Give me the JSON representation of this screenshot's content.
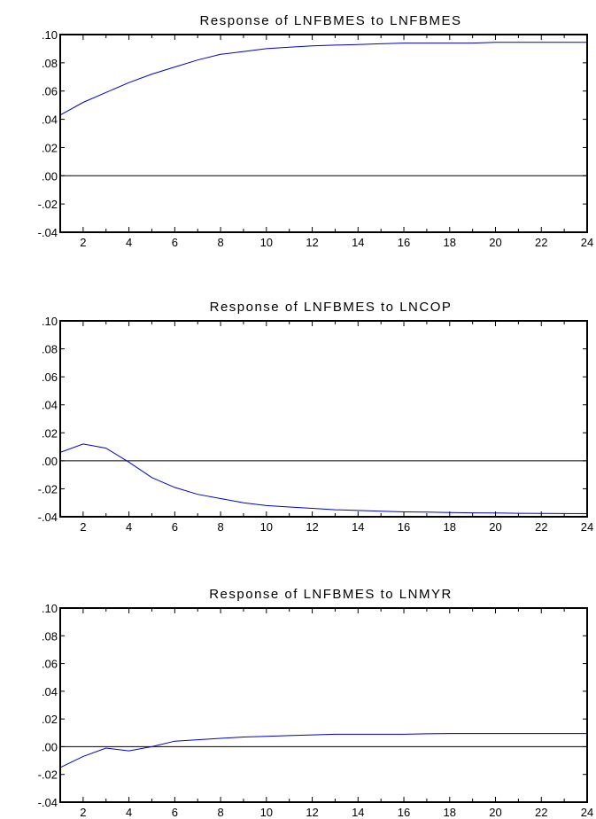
{
  "chart_data": [
    {
      "type": "line",
      "title": "Response of LNFBMES to LNFBMES",
      "x": [
        1,
        2,
        3,
        4,
        5,
        6,
        7,
        8,
        9,
        10,
        11,
        12,
        13,
        14,
        15,
        16,
        17,
        18,
        19,
        20,
        21,
        22,
        23,
        24
      ],
      "xticks": [
        "2",
        "4",
        "6",
        "8",
        "10",
        "12",
        "14",
        "16",
        "18",
        "20",
        "22",
        "24"
      ],
      "yticks": [
        ".10",
        ".08",
        ".06",
        ".04",
        ".02",
        ".00",
        "-.02",
        "-.04"
      ],
      "ylim": [
        -0.04,
        0.1
      ],
      "xlim": [
        1,
        24
      ],
      "series": [
        {
          "color": "#0000cc",
          "values": [
            0.043,
            0.052,
            0.059,
            0.066,
            0.072,
            0.077,
            0.082,
            0.086,
            0.088,
            0.09,
            0.091,
            0.092,
            0.0925,
            0.093,
            0.0935,
            0.094,
            0.094,
            0.094,
            0.094,
            0.0945,
            0.0945,
            0.0945,
            0.0945,
            0.0945
          ]
        }
      ]
    },
    {
      "type": "line",
      "title": "Response of LNFBMES to LNCOP",
      "x": [
        1,
        2,
        3,
        4,
        5,
        6,
        7,
        8,
        9,
        10,
        11,
        12,
        13,
        14,
        15,
        16,
        17,
        18,
        19,
        20,
        21,
        22,
        23,
        24
      ],
      "xticks": [
        "2",
        "4",
        "6",
        "8",
        "10",
        "12",
        "14",
        "16",
        "18",
        "20",
        "22",
        "24"
      ],
      "yticks": [
        ".10",
        ".08",
        ".06",
        ".04",
        ".02",
        ".00",
        "-.02",
        "-.04"
      ],
      "ylim": [
        -0.04,
        0.1
      ],
      "xlim": [
        1,
        24
      ],
      "series": [
        {
          "color": "#0000cc",
          "values": [
            0.006,
            0.012,
            0.009,
            -0.001,
            -0.012,
            -0.019,
            -0.024,
            -0.027,
            -0.03,
            -0.032,
            -0.033,
            -0.034,
            -0.035,
            -0.0355,
            -0.036,
            -0.0365,
            -0.0367,
            -0.037,
            -0.0372,
            -0.0373,
            -0.0375,
            -0.0376,
            -0.0377,
            -0.0378
          ]
        }
      ]
    },
    {
      "type": "line",
      "title": "Response of LNFBMES to LNMYR",
      "x": [
        1,
        2,
        3,
        4,
        5,
        6,
        7,
        8,
        9,
        10,
        11,
        12,
        13,
        14,
        15,
        16,
        17,
        18,
        19,
        20,
        21,
        22,
        23,
        24
      ],
      "xticks": [
        "2",
        "4",
        "6",
        "8",
        "10",
        "12",
        "14",
        "16",
        "18",
        "20",
        "22",
        "24"
      ],
      "yticks": [
        ".10",
        ".08",
        ".06",
        ".04",
        ".02",
        ".00",
        "-.02",
        "-.04"
      ],
      "ylim": [
        -0.04,
        0.1
      ],
      "xlim": [
        1,
        24
      ],
      "series": [
        {
          "color": "#0000cc",
          "values": [
            -0.015,
            -0.007,
            -0.001,
            -0.003,
            0.0,
            0.004,
            0.005,
            0.006,
            0.007,
            0.0075,
            0.008,
            0.0085,
            0.009,
            0.009,
            0.009,
            0.009,
            0.0093,
            0.0095,
            0.0095,
            0.0095,
            0.0095,
            0.0095,
            0.0095,
            0.0095
          ]
        }
      ]
    }
  ]
}
